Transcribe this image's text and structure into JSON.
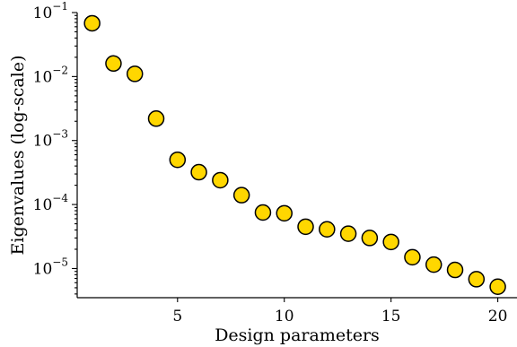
{
  "chart_data": {
    "type": "scatter",
    "xlabel": "Design parameters",
    "ylabel": "Eigenvalues (log-scale)",
    "yscale": "log",
    "xlim": [
      0.3,
      20.9
    ],
    "ylim": [
      3.5e-06,
      0.1
    ],
    "grid": false,
    "xticks": [
      5,
      10,
      15,
      20
    ],
    "xtick_labels": [
      "5",
      "10",
      "15",
      "20"
    ],
    "yticks": [
      1e-05,
      0.0001,
      0.001,
      0.01,
      0.1
    ],
    "ytick_labels": [
      {
        "base": "10",
        "exp": "−5"
      },
      {
        "base": "10",
        "exp": "−4"
      },
      {
        "base": "10",
        "exp": "−3"
      },
      {
        "base": "10",
        "exp": "−2"
      },
      {
        "base": "10",
        "exp": "−1"
      }
    ],
    "marker_color": "#FFD700",
    "marker_edge_color": "#000000",
    "points": [
      {
        "x": 1,
        "y": 0.068
      },
      {
        "x": 2,
        "y": 0.016
      },
      {
        "x": 3,
        "y": 0.011
      },
      {
        "x": 4,
        "y": 0.0022
      },
      {
        "x": 5,
        "y": 0.0005
      },
      {
        "x": 6,
        "y": 0.00032
      },
      {
        "x": 7,
        "y": 0.00024
      },
      {
        "x": 8,
        "y": 0.00014
      },
      {
        "x": 9,
        "y": 7.5e-05
      },
      {
        "x": 10,
        "y": 7.3e-05
      },
      {
        "x": 11,
        "y": 4.5e-05
      },
      {
        "x": 12,
        "y": 4.1e-05
      },
      {
        "x": 13,
        "y": 3.5e-05
      },
      {
        "x": 14,
        "y": 3e-05
      },
      {
        "x": 15,
        "y": 2.6e-05
      },
      {
        "x": 16,
        "y": 1.5e-05
      },
      {
        "x": 17,
        "y": 1.15e-05
      },
      {
        "x": 18,
        "y": 9.5e-06
      },
      {
        "x": 19,
        "y": 6.8e-06
      },
      {
        "x": 20,
        "y": 5.2e-06
      }
    ]
  }
}
